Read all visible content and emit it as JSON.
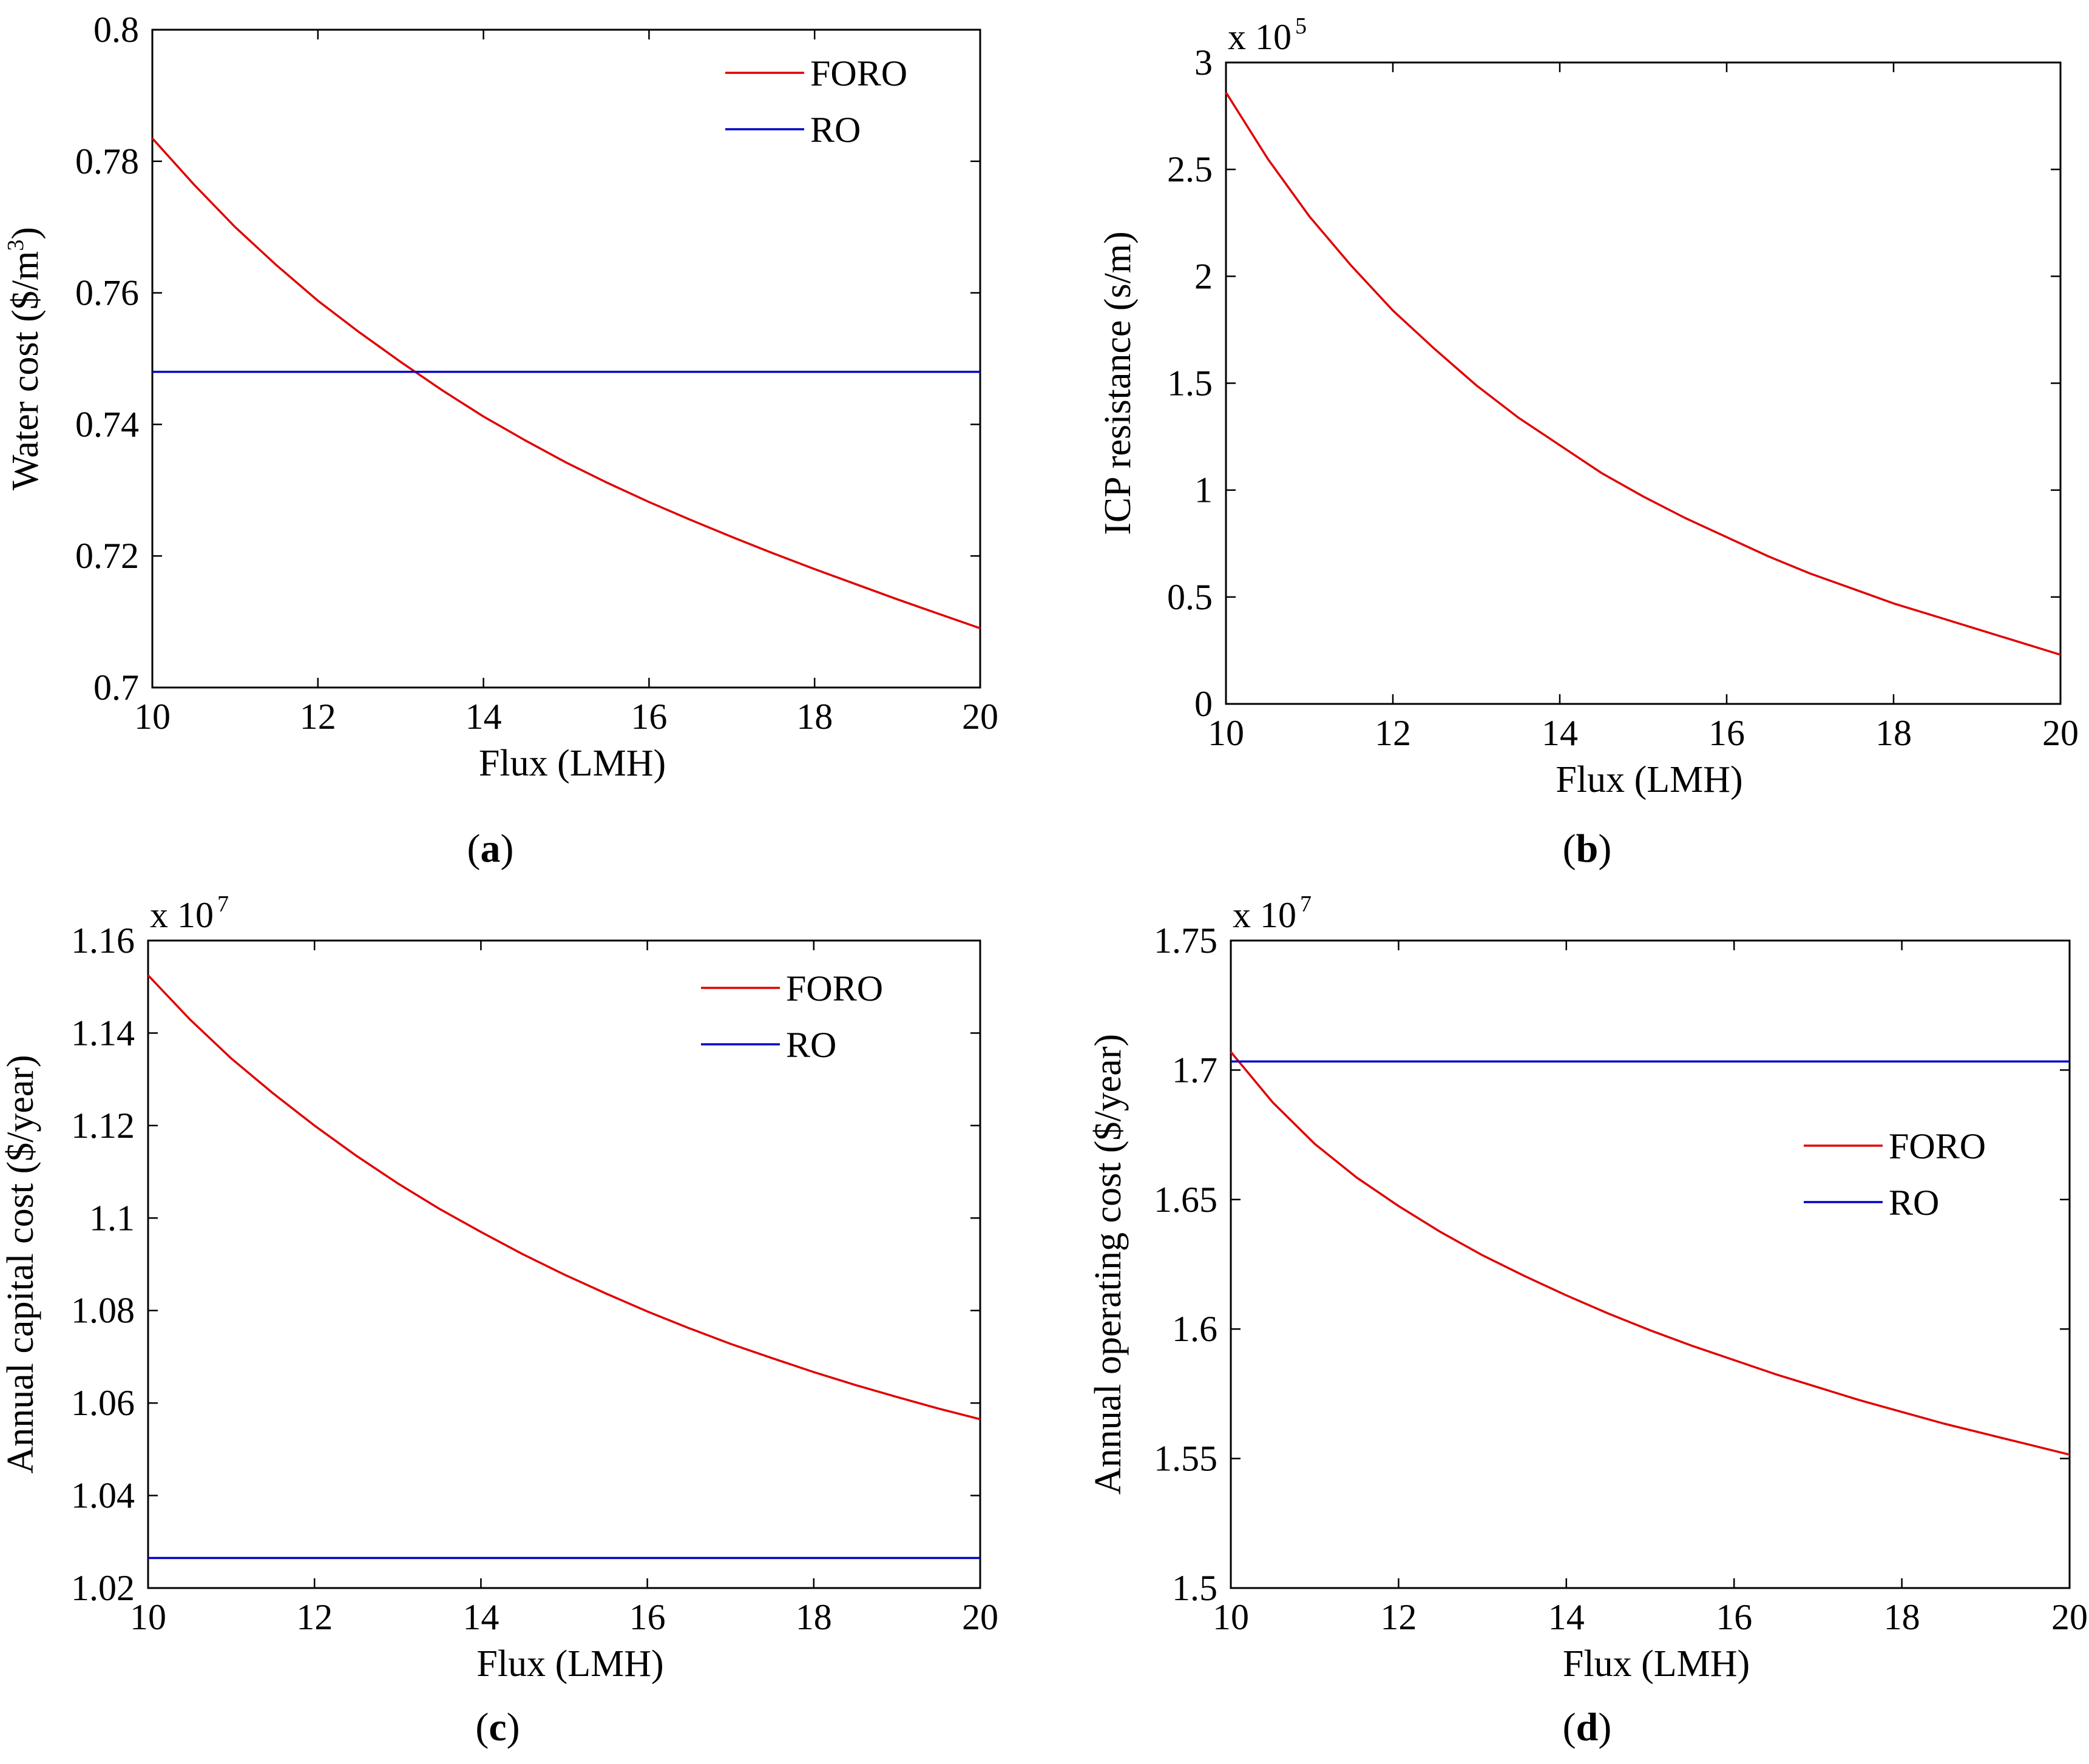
{
  "figure": {
    "panels": [
      {
        "id": "a",
        "caption": "a",
        "exponent": null,
        "legend": true,
        "legend_location": "top-right"
      },
      {
        "id": "b",
        "caption": "b",
        "exponent": {
          "base": "x 10",
          "power": "5"
        },
        "legend": false,
        "legend_location": "none"
      },
      {
        "id": "c",
        "caption": "c",
        "exponent": {
          "base": "x 10",
          "power": "7"
        },
        "legend": true,
        "legend_location": "top-right"
      },
      {
        "id": "d",
        "caption": "d",
        "exponent": {
          "base": "x 10",
          "power": "7"
        },
        "legend": true,
        "legend_location": "center-right"
      }
    ]
  },
  "chart_data": [
    {
      "type": "line",
      "title": "",
      "xlabel": "Flux (LMH)",
      "ylabel_main": "Water cost ($/m",
      "ylabel_sup": "3",
      "ylabel_tail": ")",
      "xlim": [
        10,
        20
      ],
      "ylim": [
        0.7,
        0.8
      ],
      "xticks": [
        10,
        12,
        14,
        16,
        18,
        20
      ],
      "yticks": [
        0.7,
        0.72,
        0.74,
        0.76,
        0.78,
        0.8
      ],
      "ytick_labels": [
        "0.7",
        "0.72",
        "0.74",
        "0.76",
        "0.78",
        "0.8"
      ],
      "grid": false,
      "series": [
        {
          "name": "FORO",
          "color": "#e00000",
          "x": [
            10,
            10.5,
            11,
            11.5,
            12,
            12.5,
            13,
            13.5,
            14,
            14.5,
            15,
            15.5,
            16,
            16.5,
            17,
            17.5,
            18,
            18.5,
            19,
            19.5,
            20
          ],
          "y": [
            0.7835,
            0.7765,
            0.77,
            0.7642,
            0.7588,
            0.754,
            0.7495,
            0.7452,
            0.7412,
            0.7376,
            0.7342,
            0.7311,
            0.7282,
            0.7255,
            0.7229,
            0.7204,
            0.718,
            0.7157,
            0.7134,
            0.7112,
            0.709
          ]
        },
        {
          "name": "RO",
          "color": "#0000c8",
          "x": [
            10,
            20
          ],
          "y": [
            0.748,
            0.748
          ]
        }
      ]
    },
    {
      "type": "line",
      "title": "",
      "xlabel": "Flux (LMH)",
      "ylabel_main": "ICP resistance (s/m)",
      "ylabel_sup": "",
      "ylabel_tail": "",
      "xlim": [
        10,
        20
      ],
      "ylim": [
        0,
        3
      ],
      "xticks": [
        10,
        12,
        14,
        16,
        18,
        20
      ],
      "yticks": [
        0,
        0.5,
        1,
        1.5,
        2,
        2.5,
        3
      ],
      "ytick_labels": [
        "0",
        "0.5",
        "1",
        "1.5",
        "2",
        "2.5",
        "3"
      ],
      "grid": false,
      "series": [
        {
          "name": "ICP",
          "color": "#e00000",
          "x": [
            10,
            10.5,
            11,
            11.5,
            12,
            12.5,
            13,
            13.5,
            14,
            14.5,
            15,
            15.5,
            16,
            16.5,
            17,
            17.5,
            18,
            18.5,
            19,
            19.5,
            20
          ],
          "y": [
            2.86,
            2.55,
            2.28,
            2.05,
            1.84,
            1.66,
            1.49,
            1.34,
            1.21,
            1.08,
            0.97,
            0.87,
            0.78,
            0.69,
            0.61,
            0.54,
            0.47,
            0.41,
            0.35,
            0.29,
            0.23
          ]
        }
      ]
    },
    {
      "type": "line",
      "title": "",
      "xlabel": "Flux (LMH)",
      "ylabel_main": "Annual capital cost ($/year)",
      "ylabel_sup": "",
      "ylabel_tail": "",
      "xlim": [
        10,
        20
      ],
      "ylim": [
        1.02,
        1.16
      ],
      "xticks": [
        10,
        12,
        14,
        16,
        18,
        20
      ],
      "yticks": [
        1.02,
        1.04,
        1.06,
        1.08,
        1.1,
        1.12,
        1.14,
        1.16
      ],
      "ytick_labels": [
        "1.02",
        "1.04",
        "1.06",
        "1.08",
        "1.1",
        "1.12",
        "1.14",
        "1.16"
      ],
      "grid": false,
      "series": [
        {
          "name": "FORO",
          "color": "#e00000",
          "x": [
            10,
            10.5,
            11,
            11.5,
            12,
            12.5,
            13,
            13.5,
            14,
            14.5,
            15,
            15.5,
            16,
            16.5,
            17,
            17.5,
            18,
            18.5,
            19,
            19.5,
            20
          ],
          "y": [
            1.1525,
            1.143,
            1.1345,
            1.127,
            1.12,
            1.1135,
            1.1075,
            1.102,
            1.097,
            1.0922,
            1.0878,
            1.0837,
            1.0798,
            1.0762,
            1.0728,
            1.0697,
            1.0667,
            1.0639,
            1.0613,
            1.0588,
            1.0565
          ]
        },
        {
          "name": "RO",
          "color": "#0000c8",
          "x": [
            10,
            20
          ],
          "y": [
            1.0265,
            1.0265
          ]
        }
      ]
    },
    {
      "type": "line",
      "title": "",
      "xlabel": "Flux (LMH)",
      "ylabel_main": "Annual operating cost ($/year)",
      "ylabel_sup": "",
      "ylabel_tail": "",
      "xlim": [
        10,
        20
      ],
      "ylim": [
        1.5,
        1.75
      ],
      "xticks": [
        10,
        12,
        14,
        16,
        18,
        20
      ],
      "yticks": [
        1.5,
        1.55,
        1.6,
        1.65,
        1.7,
        1.75
      ],
      "ytick_labels": [
        "1.5",
        "1.55",
        "1.6",
        "1.65",
        "1.7",
        "1.75"
      ],
      "grid": false,
      "series": [
        {
          "name": "FORO",
          "color": "#e00000",
          "x": [
            10,
            10.5,
            11,
            11.5,
            12,
            12.5,
            13,
            13.5,
            14,
            14.5,
            15,
            15.5,
            16,
            16.5,
            17,
            17.5,
            18,
            18.5,
            19,
            19.5,
            20
          ],
          "y": [
            1.707,
            1.6875,
            1.6715,
            1.6585,
            1.6475,
            1.6375,
            1.6285,
            1.6205,
            1.613,
            1.606,
            1.5995,
            1.5935,
            1.588,
            1.5825,
            1.5775,
            1.5725,
            1.568,
            1.5635,
            1.5595,
            1.5555,
            1.5515
          ]
        },
        {
          "name": "RO",
          "color": "#0000c8",
          "x": [
            10,
            20
          ],
          "y": [
            1.7033,
            1.7033
          ]
        }
      ]
    }
  ]
}
